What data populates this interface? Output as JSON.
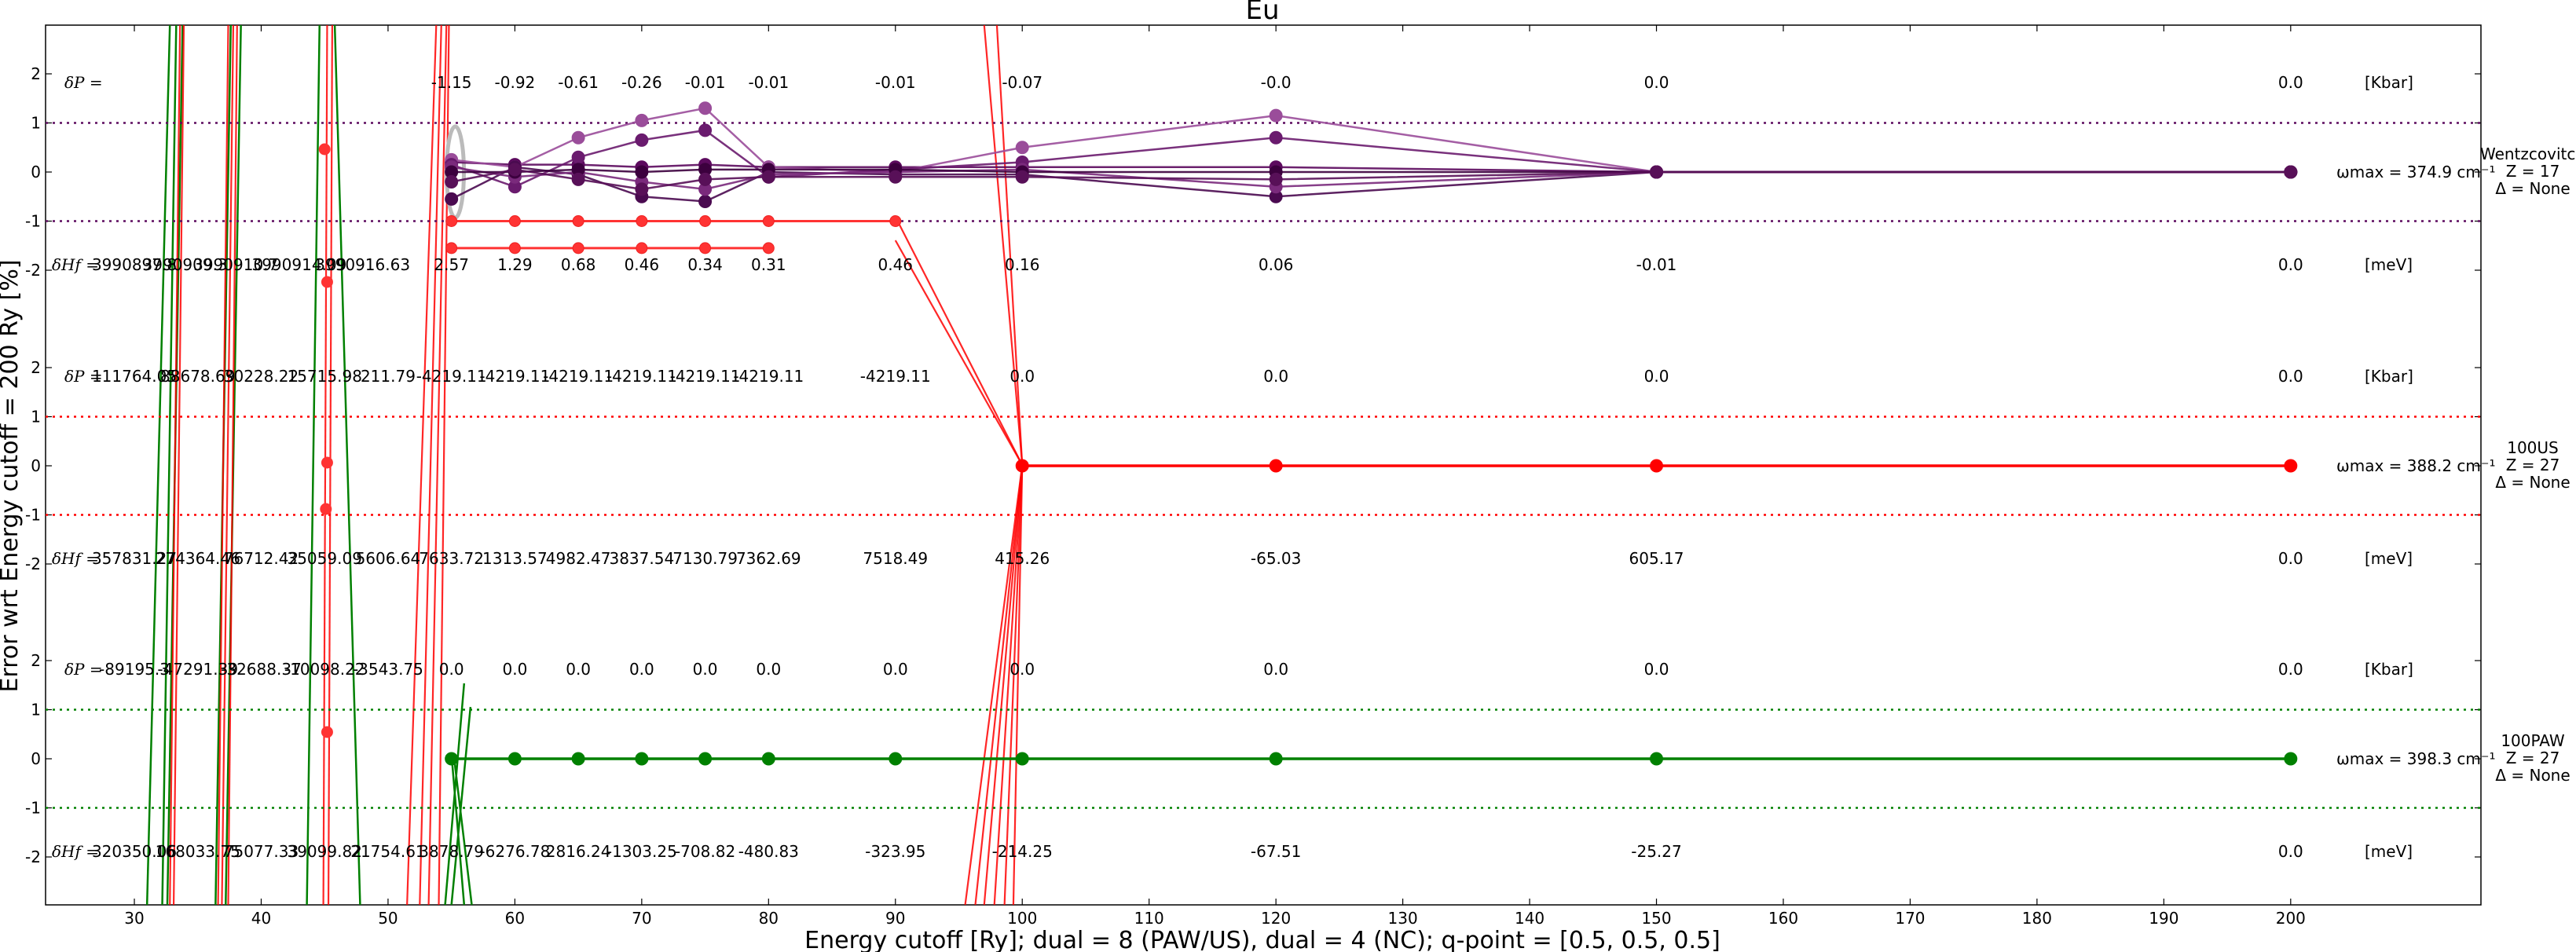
{
  "chart_data": {
    "type": "line",
    "title": "Eu",
    "xlabel": "Energy cutoff [Ry]; dual = 8 (PAW/US), dual = 4 (NC); q-point = [0.5, 0.5, 0.5]",
    "ylabel": "Error wrt Energy cutoff = 200 Ry [%]",
    "xlim": [
      23,
      215
    ],
    "x_ticks": [
      30,
      40,
      50,
      60,
      70,
      80,
      90,
      100,
      110,
      120,
      130,
      140,
      150,
      160,
      170,
      180,
      190,
      200
    ],
    "y_tick_labels": [
      "2",
      "1",
      "0",
      "-1",
      "-2"
    ],
    "grid": false,
    "panels": [
      {
        "name": "Wentzcovitch",
        "color": "#5c0a5e",
        "right_label": [
          "Wentzcovitch",
          "Z = 17",
          "Δ = None"
        ],
        "omega_label": "ωmax = 374.9 cm⁻¹",
        "dP_label": "δP =",
        "dP_unit": "[Kbar]",
        "dP_values": [
          {
            "x": 55,
            "text": "-1.15"
          },
          {
            "x": 60,
            "text": "-0.92"
          },
          {
            "x": 65,
            "text": "-0.61"
          },
          {
            "x": 70,
            "text": "-0.26"
          },
          {
            "x": 75,
            "text": "-0.01"
          },
          {
            "x": 80,
            "text": "-0.01"
          },
          {
            "x": 90,
            "text": "-0.01"
          },
          {
            "x": 100,
            "text": "-0.07"
          },
          {
            "x": 120,
            "text": "-0.0"
          },
          {
            "x": 150,
            "text": "0.0"
          },
          {
            "x": 200,
            "text": "0.0"
          }
        ],
        "dH_label": "δHf =",
        "dH_unit": "[meV]",
        "dH_values": [
          {
            "x": 30,
            "text": "3990897.8"
          },
          {
            "x": 34,
            "text": "3990909.3"
          },
          {
            "x": 38,
            "text": "3990910.7"
          },
          {
            "x": 43,
            "text": "3990914.09"
          },
          {
            "x": 48,
            "text": "3990916.63"
          },
          {
            "x": 55,
            "text": "2.57"
          },
          {
            "x": 60,
            "text": "1.29"
          },
          {
            "x": 65,
            "text": "0.68"
          },
          {
            "x": 70,
            "text": "0.46"
          },
          {
            "x": 75,
            "text": "0.34"
          },
          {
            "x": 80,
            "text": "0.31"
          },
          {
            "x": 90,
            "text": "0.46"
          },
          {
            "x": 100,
            "text": "0.16"
          },
          {
            "x": 120,
            "text": "0.06"
          },
          {
            "x": 150,
            "text": "-0.01"
          },
          {
            "x": 200,
            "text": "0.0"
          }
        ],
        "series": [
          {
            "values": [
              {
                "x": 55,
                "y": 0.2
              },
              {
                "x": 60,
                "y": 0.15
              },
              {
                "x": 65,
                "y": 0.15
              },
              {
                "x": 70,
                "y": 0.1
              },
              {
                "x": 75,
                "y": 0.15
              },
              {
                "x": 80,
                "y": 0.1
              },
              {
                "x": 90,
                "y": 0.1
              },
              {
                "x": 100,
                "y": 0.1
              },
              {
                "x": 120,
                "y": 0.1
              },
              {
                "x": 150,
                "y": 0.0
              },
              {
                "x": 200,
                "y": 0.0
              }
            ]
          },
          {
            "values": [
              {
                "x": 55,
                "y": 0.25
              },
              {
                "x": 60,
                "y": 0.1
              },
              {
                "x": 65,
                "y": 0.7
              },
              {
                "x": 70,
                "y": 1.05
              },
              {
                "x": 75,
                "y": 1.3
              },
              {
                "x": 80,
                "y": 0.1
              },
              {
                "x": 90,
                "y": 0.0
              },
              {
                "x": 100,
                "y": 0.5
              },
              {
                "x": 120,
                "y": 1.15
              },
              {
                "x": 150,
                "y": 0.0
              },
              {
                "x": 200,
                "y": 0.0
              }
            ]
          },
          {
            "values": [
              {
                "x": 55,
                "y": 0.15
              },
              {
                "x": 60,
                "y": -0.3
              },
              {
                "x": 65,
                "y": 0.3
              },
              {
                "x": 70,
                "y": 0.65
              },
              {
                "x": 75,
                "y": 0.85
              },
              {
                "x": 80,
                "y": -0.1
              },
              {
                "x": 90,
                "y": 0.05
              },
              {
                "x": 100,
                "y": 0.2
              },
              {
                "x": 120,
                "y": 0.7
              },
              {
                "x": 150,
                "y": 0.0
              },
              {
                "x": 200,
                "y": 0.0
              }
            ]
          },
          {
            "values": [
              {
                "x": 55,
                "y": -0.55
              },
              {
                "x": 60,
                "y": 0.1
              },
              {
                "x": 65,
                "y": -0.05
              },
              {
                "x": 70,
                "y": -0.5
              },
              {
                "x": 75,
                "y": -0.6
              },
              {
                "x": 80,
                "y": 0.0
              },
              {
                "x": 90,
                "y": -0.05
              },
              {
                "x": 100,
                "y": -0.05
              },
              {
                "x": 120,
                "y": -0.5
              },
              {
                "x": 150,
                "y": 0.0
              },
              {
                "x": 200,
                "y": 0.0
              }
            ]
          },
          {
            "values": [
              {
                "x": 55,
                "y": 0.1
              },
              {
                "x": 60,
                "y": -0.1
              },
              {
                "x": 65,
                "y": 0.0
              },
              {
                "x": 70,
                "y": -0.2
              },
              {
                "x": 75,
                "y": -0.35
              },
              {
                "x": 80,
                "y": -0.05
              },
              {
                "x": 90,
                "y": 0.0
              },
              {
                "x": 100,
                "y": 0.05
              },
              {
                "x": 120,
                "y": -0.3
              },
              {
                "x": 150,
                "y": 0.0
              },
              {
                "x": 200,
                "y": 0.0
              }
            ]
          },
          {
            "values": [
              {
                "x": 55,
                "y": 0.0
              },
              {
                "x": 60,
                "y": 0.0
              },
              {
                "x": 65,
                "y": 0.05
              },
              {
                "x": 70,
                "y": 0.0
              },
              {
                "x": 75,
                "y": 0.05
              },
              {
                "x": 80,
                "y": 0.05
              },
              {
                "x": 90,
                "y": 0.05
              },
              {
                "x": 100,
                "y": 0.0
              },
              {
                "x": 120,
                "y": 0.0
              },
              {
                "x": 150,
                "y": 0.0
              },
              {
                "x": 200,
                "y": 0.0
              }
            ]
          },
          {
            "values": [
              {
                "x": 55,
                "y": -0.2
              },
              {
                "x": 60,
                "y": 0.05
              },
              {
                "x": 65,
                "y": -0.15
              },
              {
                "x": 70,
                "y": -0.35
              },
              {
                "x": 75,
                "y": -0.15
              },
              {
                "x": 80,
                "y": -0.1
              },
              {
                "x": 90,
                "y": -0.1
              },
              {
                "x": 100,
                "y": -0.1
              },
              {
                "x": 120,
                "y": -0.15
              },
              {
                "x": 150,
                "y": 0.0
              },
              {
                "x": 200,
                "y": 0.0
              }
            ]
          }
        ],
        "stray_points": [
          {
            "x": 55,
            "y": -1.0
          },
          {
            "x": 60,
            "y": -1.0
          },
          {
            "x": 65,
            "y": -1.0
          },
          {
            "x": 70,
            "y": -1.0
          },
          {
            "x": 75,
            "y": -1.0
          },
          {
            "x": 80,
            "y": -1.0
          },
          {
            "x": 90,
            "y": -1.0
          },
          {
            "x": 55,
            "y": -1.55
          },
          {
            "x": 60,
            "y": -1.55
          },
          {
            "x": 65,
            "y": -1.55
          },
          {
            "x": 70,
            "y": -1.55
          },
          {
            "x": 75,
            "y": -1.55
          },
          {
            "x": 80,
            "y": -1.55
          }
        ]
      },
      {
        "name": "100US",
        "color": "#ff0000",
        "right_label": [
          "100US",
          "Z = 27",
          "Δ = None"
        ],
        "omega_label": "ωmax = 388.2 cm⁻¹",
        "dP_label": "δP =",
        "dP_unit": "[Kbar]",
        "dP_values": [
          {
            "x": 30,
            "text": "111764.05"
          },
          {
            "x": 35,
            "text": "88678.69"
          },
          {
            "x": 40,
            "text": "30228.22"
          },
          {
            "x": 45,
            "text": "15715.98"
          },
          {
            "x": 50,
            "text": "211.79"
          },
          {
            "x": 55,
            "text": "-4219.11"
          },
          {
            "x": 60,
            "text": "-4219.11"
          },
          {
            "x": 65,
            "text": "-4219.11"
          },
          {
            "x": 70,
            "text": "-4219.11"
          },
          {
            "x": 75,
            "text": "-4219.11"
          },
          {
            "x": 80,
            "text": "-4219.11"
          },
          {
            "x": 90,
            "text": "-4219.11"
          },
          {
            "x": 100,
            "text": "0.0"
          },
          {
            "x": 120,
            "text": "0.0"
          },
          {
            "x": 150,
            "text": "0.0"
          },
          {
            "x": 200,
            "text": "0.0"
          }
        ],
        "dH_label": "δHf =",
        "dH_unit": "[meV]",
        "dH_values": [
          {
            "x": 30,
            "text": "357831.27"
          },
          {
            "x": 35,
            "text": "274364.46"
          },
          {
            "x": 40,
            "text": "76712.42"
          },
          {
            "x": 45,
            "text": "35059.09"
          },
          {
            "x": 50,
            "text": "5606.64"
          },
          {
            "x": 55,
            "text": "7633.72"
          },
          {
            "x": 60,
            "text": "1313.57"
          },
          {
            "x": 65,
            "text": "4982.47"
          },
          {
            "x": 70,
            "text": "3837.54"
          },
          {
            "x": 75,
            "text": "7130.79"
          },
          {
            "x": 80,
            "text": "7362.69"
          },
          {
            "x": 90,
            "text": "7518.49"
          },
          {
            "x": 100,
            "text": "415.26"
          },
          {
            "x": 120,
            "text": "-65.03"
          },
          {
            "x": 150,
            "text": "605.17"
          },
          {
            "x": 200,
            "text": "0.0"
          }
        ],
        "series": [
          {
            "values": [
              {
                "x": 100,
                "y": 0
              },
              {
                "x": 120,
                "y": 0
              },
              {
                "x": 150,
                "y": 0
              },
              {
                "x": 200,
                "y": 0
              }
            ]
          }
        ]
      },
      {
        "name": "100PAW",
        "color": "#008000",
        "right_label": [
          "100PAW",
          "Z = 27",
          "Δ = None"
        ],
        "omega_label": "ωmax = 398.3 cm⁻¹",
        "dP_label": "δP =",
        "dP_unit": "[Kbar]",
        "dP_values": [
          {
            "x": 30,
            "text": "-89195.3"
          },
          {
            "x": 35,
            "text": "-47291.39"
          },
          {
            "x": 40,
            "text": "-32688.37"
          },
          {
            "x": 45,
            "text": "-10098.22"
          },
          {
            "x": 50,
            "text": "-3543.75"
          },
          {
            "x": 55,
            "text": "0.0"
          },
          {
            "x": 60,
            "text": "0.0"
          },
          {
            "x": 65,
            "text": "0.0"
          },
          {
            "x": 70,
            "text": "0.0"
          },
          {
            "x": 75,
            "text": "0.0"
          },
          {
            "x": 80,
            "text": "0.0"
          },
          {
            "x": 90,
            "text": "0.0"
          },
          {
            "x": 100,
            "text": "0.0"
          },
          {
            "x": 120,
            "text": "0.0"
          },
          {
            "x": 150,
            "text": "0.0"
          },
          {
            "x": 200,
            "text": "0.0"
          }
        ],
        "dH_label": "δHf =",
        "dH_unit": "[meV]",
        "dH_values": [
          {
            "x": 30,
            "text": "320350.06"
          },
          {
            "x": 35,
            "text": "168033.75"
          },
          {
            "x": 40,
            "text": "75077.33"
          },
          {
            "x": 45,
            "text": "39099.82"
          },
          {
            "x": 50,
            "text": "21754.61"
          },
          {
            "x": 55,
            "text": "3878.79"
          },
          {
            "x": 60,
            "text": "-6276.78"
          },
          {
            "x": 65,
            "text": "2816.24"
          },
          {
            "x": 70,
            "text": "-1303.25"
          },
          {
            "x": 75,
            "text": "-708.82"
          },
          {
            "x": 80,
            "text": "-480.83"
          },
          {
            "x": 90,
            "text": "-323.95"
          },
          {
            "x": 100,
            "text": "-214.25"
          },
          {
            "x": 120,
            "text": "-67.51"
          },
          {
            "x": 150,
            "text": "-25.27"
          },
          {
            "x": 200,
            "text": "0.0"
          }
        ],
        "series": [
          {
            "values": [
              {
                "x": 55,
                "y": 0
              },
              {
                "x": 60,
                "y": 0
              },
              {
                "x": 65,
                "y": 0
              },
              {
                "x": 70,
                "y": 0
              },
              {
                "x": 75,
                "y": 0
              },
              {
                "x": 80,
                "y": 0
              },
              {
                "x": 90,
                "y": 0
              },
              {
                "x": 100,
                "y": 0
              },
              {
                "x": 120,
                "y": 0
              },
              {
                "x": 150,
                "y": 0
              },
              {
                "x": 200,
                "y": 0
              }
            ]
          }
        ]
      }
    ]
  }
}
